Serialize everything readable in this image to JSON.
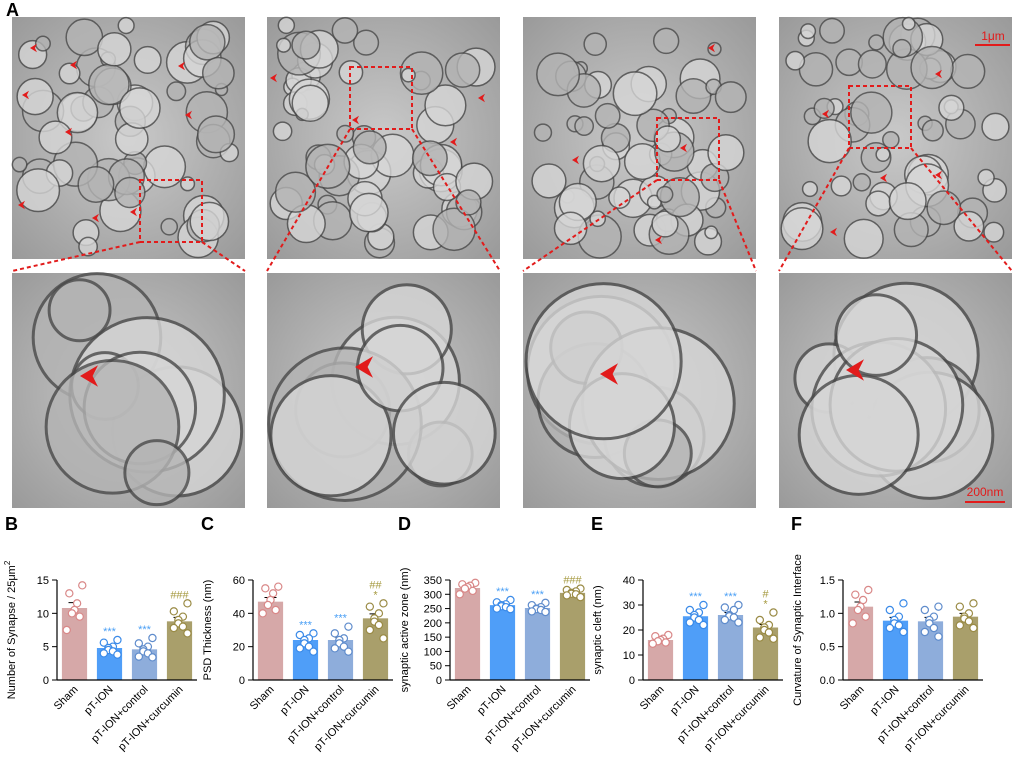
{
  "panel_a": {
    "label": "A",
    "scale_bars": [
      "1μm",
      "200nm"
    ]
  },
  "chart_data": [
    {
      "type": "bar",
      "panel": "B",
      "ylabel": "Number of Synapse / 25μm",
      "ylabel_superscript": "2",
      "categories": [
        "Sham",
        "pT-ION",
        "pT-ION+control",
        "pT-ION+curcumin"
      ],
      "values": [
        10.8,
        4.8,
        4.6,
        8.8
      ],
      "errors": [
        0.8,
        0.35,
        0.35,
        0.6
      ],
      "points": [
        [
          14.2,
          13,
          11.5,
          10.5,
          10,
          9.5,
          7.5
        ],
        [
          6,
          5.6,
          5,
          4.8,
          4.5,
          4.3,
          4,
          3.8
        ],
        [
          6.3,
          5.5,
          5,
          4.6,
          4.3,
          4,
          3.5,
          3.4
        ],
        [
          11.5,
          10.3,
          9.5,
          9,
          8.5,
          8,
          7.8,
          7
        ]
      ],
      "colors": [
        "#d6a8a8",
        "#4f9ef8",
        "#8eaddb",
        "#a99f6b"
      ],
      "point_colors": [
        "#d98888",
        "#3a8ae8",
        "#5f8ccc",
        "#9a8b45"
      ],
      "sig_labels": [
        null,
        [
          "***"
        ],
        [
          "***"
        ],
        [
          "###"
        ]
      ],
      "sig_colors": [
        null,
        "#4a9ff5",
        "#4a9ff5",
        "#a69a40"
      ],
      "ylim": [
        0,
        15
      ],
      "yticks": [
        0,
        5,
        10,
        15
      ]
    },
    {
      "type": "bar",
      "panel": "C",
      "ylabel": "PSD Thickness (nm)",
      "categories": [
        "Sham",
        "pT-ION",
        "pT-ION+control",
        "pT-ION+curcumin"
      ],
      "values": [
        47,
        24,
        24,
        37
      ],
      "errors": [
        2.5,
        1.5,
        1.7,
        2.7
      ],
      "points": [
        [
          56,
          55,
          52,
          48,
          45,
          42,
          40
        ],
        [
          28,
          27,
          25,
          24,
          22,
          20,
          19,
          17
        ],
        [
          32,
          28,
          25,
          24,
          22,
          20,
          19,
          17
        ],
        [
          46,
          44,
          40,
          37,
          35,
          33,
          30,
          25
        ]
      ],
      "colors": [
        "#d6a8a8",
        "#4f9ef8",
        "#8eaddb",
        "#a99f6b"
      ],
      "point_colors": [
        "#d98888",
        "#3a8ae8",
        "#5f8ccc",
        "#9a8b45"
      ],
      "sig_labels": [
        null,
        [
          "***"
        ],
        [
          "***"
        ],
        [
          "##",
          "*"
        ]
      ],
      "sig_colors": [
        null,
        "#4a9ff5",
        "#4a9ff5",
        "#a69a40"
      ],
      "ylim": [
        0,
        60
      ],
      "yticks": [
        0,
        20,
        40,
        60
      ]
    },
    {
      "type": "bar",
      "panel": "D",
      "ylabel": "synaptic active zone (nm)",
      "categories": [
        "Sham",
        "pT-ION",
        "pT-ION+control",
        "pT-ION+curcumin"
      ],
      "values": [
        322,
        262,
        252,
        305
      ],
      "errors": [
        6,
        4,
        4,
        4
      ],
      "points": [
        [
          340,
          335,
          330,
          325,
          320,
          312,
          300
        ],
        [
          280,
          272,
          265,
          262,
          258,
          255,
          250,
          248
        ],
        [
          270,
          262,
          255,
          250,
          248,
          245,
          240,
          238
        ],
        [
          320,
          315,
          310,
          305,
          302,
          300,
          296,
          290
        ]
      ],
      "colors": [
        "#d6a8a8",
        "#4f9ef8",
        "#8eaddb",
        "#a99f6b"
      ],
      "point_colors": [
        "#d98888",
        "#3a8ae8",
        "#5f8ccc",
        "#9a8b45"
      ],
      "sig_labels": [
        null,
        [
          "***"
        ],
        [
          "***"
        ],
        [
          "###"
        ]
      ],
      "sig_colors": [
        null,
        "#4a9ff5",
        "#4a9ff5",
        "#a69a40"
      ],
      "ylim": [
        0,
        350
      ],
      "yticks": [
        0,
        50,
        100,
        150,
        200,
        250,
        300,
        350
      ]
    },
    {
      "type": "bar",
      "panel": "E",
      "ylabel": "synaptic cleft (nm)",
      "categories": [
        "Sham",
        "pT-ION",
        "pT-ION+control",
        "pT-ION+curcumin"
      ],
      "values": [
        16,
        25.5,
        26,
        21
      ],
      "errors": [
        0.6,
        1,
        1,
        1.2
      ],
      "points": [
        [
          18,
          17.5,
          16.5,
          16,
          15.5,
          15,
          14.5
        ],
        [
          30,
          28,
          27,
          26,
          25,
          24,
          23,
          22
        ],
        [
          30,
          29,
          28,
          26,
          25.5,
          25,
          24,
          23
        ],
        [
          27,
          24,
          22,
          21,
          20,
          19,
          17,
          16.5
        ]
      ],
      "colors": [
        "#d6a8a8",
        "#4f9ef8",
        "#8eaddb",
        "#a99f6b"
      ],
      "point_colors": [
        "#d98888",
        "#3a8ae8",
        "#5f8ccc",
        "#9a8b45"
      ],
      "sig_labels": [
        null,
        [
          "***"
        ],
        [
          "***"
        ],
        [
          "#",
          "*"
        ]
      ],
      "sig_colors": [
        null,
        "#4a9ff5",
        "#4a9ff5",
        "#a69a40"
      ],
      "ylim": [
        0,
        40
      ],
      "yticks": [
        0,
        10,
        20,
        30,
        40
      ]
    },
    {
      "type": "bar",
      "panel": "F",
      "ylabel": "Curvature of Synaptic Interface",
      "categories": [
        "Sham",
        "pT-ION",
        "pT-ION+control",
        "pT-ION+curcumin"
      ],
      "values": [
        1.1,
        0.89,
        0.88,
        0.95
      ],
      "errors": [
        0.07,
        0.05,
        0.06,
        0.05
      ],
      "points": [
        [
          1.35,
          1.28,
          1.2,
          1.1,
          1.05,
          0.95,
          0.85
        ],
        [
          1.15,
          1.05,
          0.95,
          0.9,
          0.85,
          0.82,
          0.78,
          0.72
        ],
        [
          1.1,
          1.05,
          0.95,
          0.9,
          0.85,
          0.78,
          0.72,
          0.65
        ],
        [
          1.15,
          1.1,
          1.0,
          0.95,
          0.92,
          0.88,
          0.82,
          0.78
        ]
      ],
      "colors": [
        "#d6a8a8",
        "#4f9ef8",
        "#8eaddb",
        "#a99f6b"
      ],
      "point_colors": [
        "#d98888",
        "#3a8ae8",
        "#5f8ccc",
        "#9a8b45"
      ],
      "sig_labels": [
        null,
        null,
        null,
        null
      ],
      "sig_colors": [
        null,
        null,
        null,
        null
      ],
      "ylim": [
        0,
        1.5
      ],
      "yticks": [
        {
          "value": 0,
          "label": "0.0"
        },
        {
          "value": 0.5,
          "label": "0.5"
        },
        {
          "value": 1,
          "label": "1.0"
        },
        {
          "value": 1.5,
          "label": "1.5"
        }
      ]
    }
  ]
}
